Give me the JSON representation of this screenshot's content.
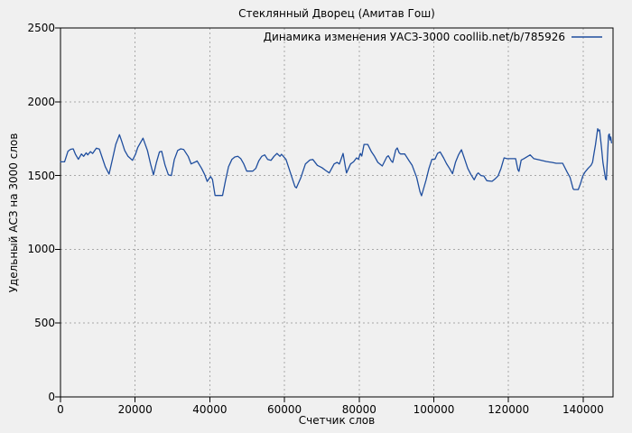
{
  "title": "Стеклянный Дворец (Амитав Гош)",
  "legend": {
    "label": "Динамика изменения УАСЗ-3000 coollib.net/b/785926"
  },
  "axes": {
    "x_label": "Счетчик слов",
    "y_label": "Удельный АСЗ на 3000 слов"
  },
  "colors": {
    "line": "#1f4e9e",
    "background": "#f0f0f0",
    "grid": "#a9a9a9",
    "frame": "#000000",
    "text": "#000000"
  },
  "chart_data": {
    "type": "line",
    "title": "Стеклянный Дворец (Амитав Гош)",
    "xlabel": "Счетчик слов",
    "ylabel": "Удельный АСЗ на 3000 слов",
    "legend_entries": [
      "Динамика изменения УАСЗ-3000 coollib.net/b/785926"
    ],
    "legend_position": "top-right-inside",
    "grid": true,
    "xlim": [
      0,
      148000
    ],
    "ylim": [
      0,
      2500
    ],
    "x_ticks": [
      0,
      20000,
      40000,
      60000,
      80000,
      100000,
      120000,
      140000
    ],
    "y_ticks": [
      0,
      500,
      1000,
      1500,
      2000,
      2500
    ],
    "series": [
      {
        "name": "Динамика изменения УАСЗ-3000 coollib.net/b/785926",
        "points": [
          [
            0,
            1593
          ],
          [
            1100,
            1593
          ],
          [
            2000,
            1665
          ],
          [
            2700,
            1678
          ],
          [
            3400,
            1681
          ],
          [
            4000,
            1645
          ],
          [
            4800,
            1610
          ],
          [
            5600,
            1646
          ],
          [
            6200,
            1630
          ],
          [
            6900,
            1654
          ],
          [
            7300,
            1640
          ],
          [
            8000,
            1662
          ],
          [
            8600,
            1650
          ],
          [
            9600,
            1685
          ],
          [
            10400,
            1680
          ],
          [
            11200,
            1620
          ],
          [
            12000,
            1560
          ],
          [
            13000,
            1510
          ],
          [
            14000,
            1620
          ],
          [
            14800,
            1711
          ],
          [
            15800,
            1777
          ],
          [
            16400,
            1732
          ],
          [
            17200,
            1670
          ],
          [
            18100,
            1630
          ],
          [
            19300,
            1603
          ],
          [
            20100,
            1644
          ],
          [
            20700,
            1691
          ],
          [
            22100,
            1753
          ],
          [
            23300,
            1670
          ],
          [
            24100,
            1580
          ],
          [
            24900,
            1504
          ],
          [
            25700,
            1590
          ],
          [
            26500,
            1660
          ],
          [
            27100,
            1664
          ],
          [
            28000,
            1570
          ],
          [
            28900,
            1505
          ],
          [
            29700,
            1500
          ],
          [
            30500,
            1609
          ],
          [
            31400,
            1670
          ],
          [
            32200,
            1681
          ],
          [
            33000,
            1676
          ],
          [
            34200,
            1630
          ],
          [
            35000,
            1579
          ],
          [
            36200,
            1593
          ],
          [
            36600,
            1599
          ],
          [
            37800,
            1548
          ],
          [
            38600,
            1508
          ],
          [
            39300,
            1460
          ],
          [
            40200,
            1493
          ],
          [
            40700,
            1475
          ],
          [
            41400,
            1365
          ],
          [
            43400,
            1365
          ],
          [
            44200,
            1467
          ],
          [
            45000,
            1559
          ],
          [
            45900,
            1609
          ],
          [
            46700,
            1626
          ],
          [
            47500,
            1630
          ],
          [
            48300,
            1614
          ],
          [
            49100,
            1579
          ],
          [
            49900,
            1530
          ],
          [
            51500,
            1530
          ],
          [
            52300,
            1548
          ],
          [
            53100,
            1599
          ],
          [
            53900,
            1630
          ],
          [
            54700,
            1640
          ],
          [
            55500,
            1609
          ],
          [
            56400,
            1603
          ],
          [
            57200,
            1630
          ],
          [
            58000,
            1650
          ],
          [
            58800,
            1630
          ],
          [
            59200,
            1644
          ],
          [
            60400,
            1609
          ],
          [
            61600,
            1518
          ],
          [
            62800,
            1425
          ],
          [
            63200,
            1416
          ],
          [
            64400,
            1487
          ],
          [
            65600,
            1579
          ],
          [
            66800,
            1605
          ],
          [
            67600,
            1609
          ],
          [
            68800,
            1569
          ],
          [
            70000,
            1554
          ],
          [
            71000,
            1535
          ],
          [
            72000,
            1518
          ],
          [
            73300,
            1579
          ],
          [
            74100,
            1589
          ],
          [
            74700,
            1578
          ],
          [
            75700,
            1650
          ],
          [
            76300,
            1560
          ],
          [
            76600,
            1518
          ],
          [
            77700,
            1579
          ],
          [
            78500,
            1593
          ],
          [
            79300,
            1620
          ],
          [
            79800,
            1610
          ],
          [
            80300,
            1650
          ],
          [
            80700,
            1632
          ],
          [
            81300,
            1711
          ],
          [
            82300,
            1711
          ],
          [
            83300,
            1660
          ],
          [
            84100,
            1630
          ],
          [
            85000,
            1589
          ],
          [
            86200,
            1565
          ],
          [
            87400,
            1626
          ],
          [
            87800,
            1634
          ],
          [
            88600,
            1599
          ],
          [
            89000,
            1589
          ],
          [
            89800,
            1673
          ],
          [
            90200,
            1687
          ],
          [
            90700,
            1654
          ],
          [
            91100,
            1646
          ],
          [
            92200,
            1646
          ],
          [
            93400,
            1599
          ],
          [
            94200,
            1569
          ],
          [
            95400,
            1487
          ],
          [
            96300,
            1390
          ],
          [
            96700,
            1363
          ],
          [
            97900,
            1467
          ],
          [
            98700,
            1548
          ],
          [
            99500,
            1610
          ],
          [
            100300,
            1612
          ],
          [
            101000,
            1650
          ],
          [
            101700,
            1660
          ],
          [
            102600,
            1620
          ],
          [
            103400,
            1580
          ],
          [
            104200,
            1548
          ],
          [
            105000,
            1512
          ],
          [
            105800,
            1590
          ],
          [
            106600,
            1640
          ],
          [
            107400,
            1675
          ],
          [
            108300,
            1609
          ],
          [
            109100,
            1548
          ],
          [
            109900,
            1508
          ],
          [
            110800,
            1471
          ],
          [
            111500,
            1508
          ],
          [
            111900,
            1518
          ],
          [
            112600,
            1500
          ],
          [
            113400,
            1497
          ],
          [
            114200,
            1465
          ],
          [
            115600,
            1461
          ],
          [
            116400,
            1477
          ],
          [
            117200,
            1497
          ],
          [
            118000,
            1548
          ],
          [
            118800,
            1620
          ],
          [
            119500,
            1615
          ],
          [
            121900,
            1614
          ],
          [
            122500,
            1540
          ],
          [
            122800,
            1528
          ],
          [
            123400,
            1605
          ],
          [
            124100,
            1614
          ],
          [
            125800,
            1640
          ],
          [
            126800,
            1614
          ],
          [
            128400,
            1605
          ],
          [
            130200,
            1595
          ],
          [
            131600,
            1589
          ],
          [
            132800,
            1583
          ],
          [
            134500,
            1583
          ],
          [
            135700,
            1524
          ],
          [
            136500,
            1487
          ],
          [
            137300,
            1410
          ],
          [
            137500,
            1405
          ],
          [
            138700,
            1405
          ],
          [
            139300,
            1446
          ],
          [
            139900,
            1497
          ],
          [
            140500,
            1524
          ],
          [
            141300,
            1548
          ],
          [
            142100,
            1569
          ],
          [
            142500,
            1589
          ],
          [
            142900,
            1650
          ],
          [
            143300,
            1711
          ],
          [
            143900,
            1817
          ],
          [
            144100,
            1803
          ],
          [
            144400,
            1809
          ],
          [
            144900,
            1691
          ],
          [
            145300,
            1589
          ],
          [
            146000,
            1477
          ],
          [
            146200,
            1471
          ],
          [
            146800,
            1772
          ],
          [
            147000,
            1782
          ],
          [
            147200,
            1741
          ],
          [
            147400,
            1761
          ],
          [
            147600,
            1722
          ]
        ]
      }
    ]
  }
}
